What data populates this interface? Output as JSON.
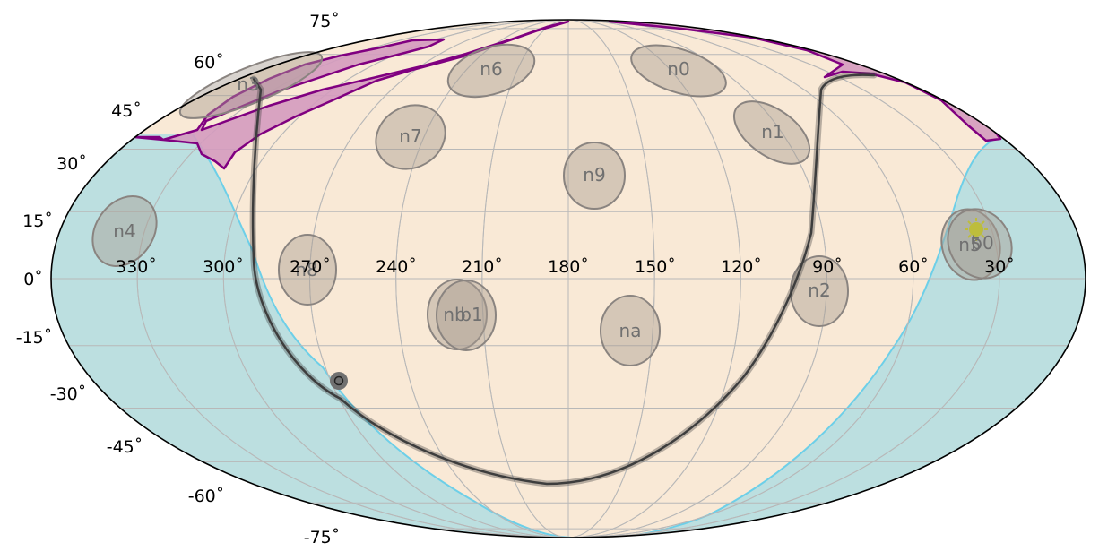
{
  "colors": {
    "background": "#f9e9d6",
    "masked_region": "#bcdfe0",
    "masked_edge": "#6dcfe8",
    "exclusion_fill": "#d49bbf",
    "exclusion_edge": "#800080",
    "field_fill": "#a89e93",
    "field_edge": "#8a8480",
    "grid": "#b8b8b8",
    "track": "#3d3d3d",
    "sun": "#c0c020"
  },
  "icons": {
    "sun": "sun-icon",
    "moon": "moon-icon"
  },
  "longitude_labels": [
    "330˚",
    "300˚",
    "270˚",
    "240˚",
    "210˚",
    "180˚",
    "150˚",
    "120˚",
    "90˚",
    "60˚",
    "30˚"
  ],
  "latitude_labels": [
    "75˚",
    "60˚",
    "45˚",
    "30˚",
    "15˚",
    "0˚",
    "-15˚",
    "-30˚",
    "-45˚",
    "-60˚",
    "-75˚"
  ],
  "fields": [
    {
      "label": "n0",
      "lon": 140,
      "lat": 62
    },
    {
      "label": "n1",
      "lon": 107,
      "lat": 40
    },
    {
      "label": "n3",
      "lon": 285,
      "lat": 58
    },
    {
      "label": "n4",
      "lon": 344,
      "lat": 15
    },
    {
      "label": "n5",
      "lon": 39,
      "lat": 10
    },
    {
      "label": "n6",
      "lon": 200,
      "lat": 62
    },
    {
      "label": "n7",
      "lon": 234,
      "lat": 40
    },
    {
      "label": "n8",
      "lon": 276,
      "lat": 2
    },
    {
      "label": "n9",
      "lon": 171,
      "lat": 30
    },
    {
      "label": "na",
      "lon": 158,
      "lat": -15
    },
    {
      "label": "nb",
      "lon": 220,
      "lat": -10
    },
    {
      "label": "n2",
      "lon": 94,
      "lat": -3
    },
    {
      "label": "b1",
      "lon": 215,
      "lat": -10
    },
    {
      "label": "b0",
      "lon": 35,
      "lat": 10
    }
  ]
}
